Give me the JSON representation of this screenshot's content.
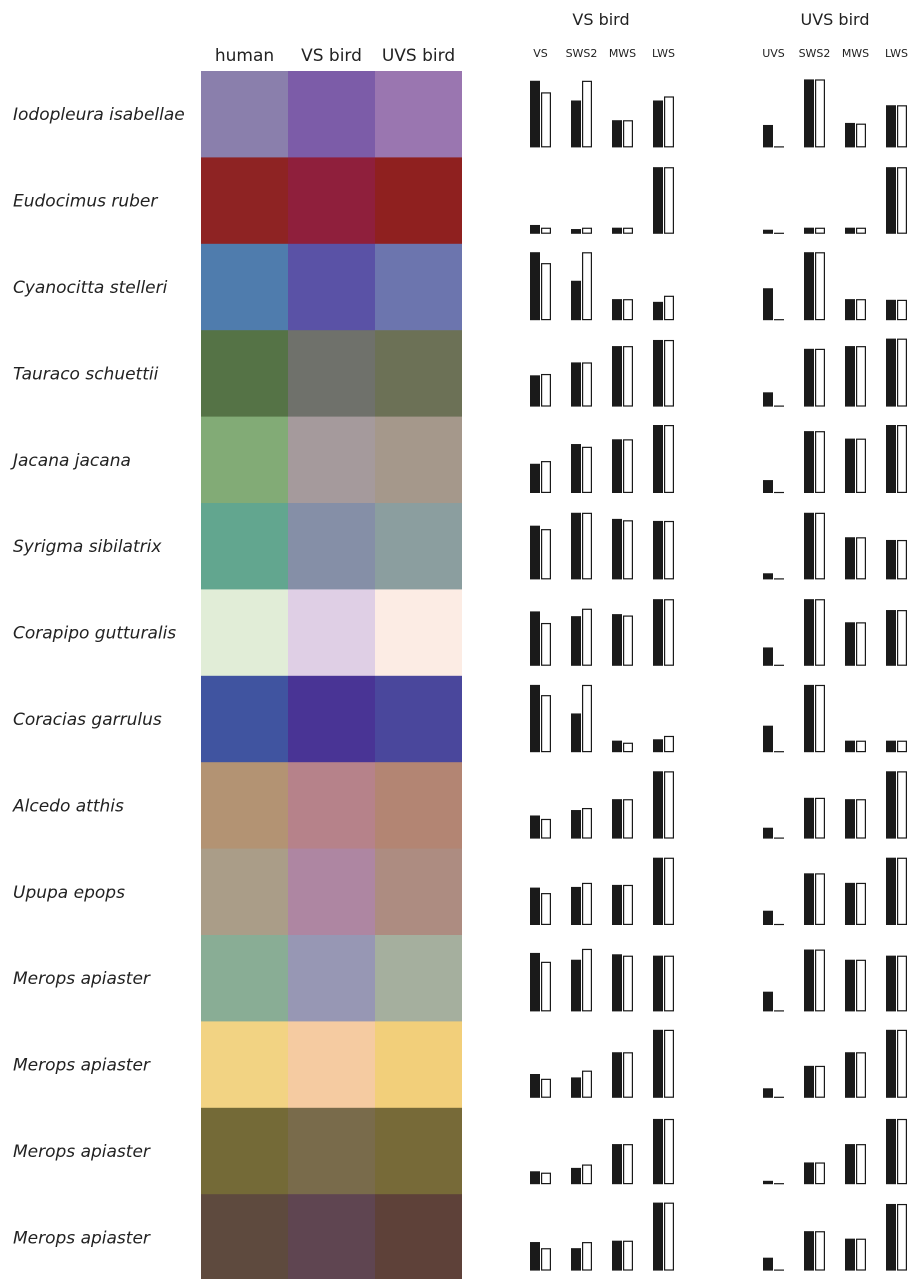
{
  "chart_data": {
    "type": "bar",
    "headers": {
      "swatch_columns": [
        "human",
        "VS bird",
        "UVS bird"
      ],
      "panels": [
        {
          "title": "VS bird",
          "cones": [
            "VS",
            "SWS2",
            "MWS",
            "LWS"
          ]
        },
        {
          "title": "UVS bird",
          "cones": [
            "UVS",
            "SWS2",
            "MWS",
            "LWS"
          ]
        }
      ]
    },
    "legend": "filled bar = first value, open bar = second value (per cone)",
    "y_range": [
      0,
      1
    ],
    "rows": [
      {
        "species": "Iodopleura isabellae",
        "colors": [
          "#8a7fac",
          "#7c5ca8",
          "#9a76b0"
        ],
        "vs": [
          [
            0.98,
            0.81
          ],
          [
            0.69,
            0.98
          ],
          [
            0.4,
            0.4
          ],
          [
            0.69,
            0.75
          ]
        ],
        "uvs": [
          [
            0.33,
            0.0
          ],
          [
            1.0,
            1.0
          ],
          [
            0.36,
            0.35
          ],
          [
            0.62,
            0.62
          ]
        ]
      },
      {
        "species": "Eudocimus ruber",
        "colors": [
          "#8e2323",
          "#8f1f3c",
          "#8f201f"
        ],
        "vs": [
          [
            0.13,
            0.09
          ],
          [
            0.07,
            0.09
          ],
          [
            0.09,
            0.09
          ],
          [
            0.98,
            0.98
          ]
        ],
        "uvs": [
          [
            0.06,
            0.0
          ],
          [
            0.09,
            0.09
          ],
          [
            0.09,
            0.09
          ],
          [
            0.98,
            0.98
          ]
        ]
      },
      {
        "species": "Cyanocitta stelleri",
        "colors": [
          "#4f7cad",
          "#5a52a6",
          "#6c75ae"
        ],
        "vs": [
          [
            1.0,
            0.84
          ],
          [
            0.58,
            1.0
          ],
          [
            0.31,
            0.31
          ],
          [
            0.27,
            0.36
          ]
        ],
        "uvs": [
          [
            0.47,
            0.0
          ],
          [
            1.0,
            1.0
          ],
          [
            0.31,
            0.31
          ],
          [
            0.3,
            0.3
          ]
        ]
      },
      {
        "species": "Tauraco schuettii",
        "colors": [
          "#557346",
          "#6f716b",
          "#6c7156"
        ],
        "vs": [
          [
            0.46,
            0.48
          ],
          [
            0.65,
            0.65
          ],
          [
            0.89,
            0.89
          ],
          [
            0.98,
            0.98
          ]
        ],
        "uvs": [
          [
            0.21,
            0.0
          ],
          [
            0.85,
            0.85
          ],
          [
            0.89,
            0.89
          ],
          [
            1.0,
            1.0
          ]
        ]
      },
      {
        "species": "Jacana jacana",
        "colors": [
          "#82ab76",
          "#a59a9c",
          "#a5988b"
        ],
        "vs": [
          [
            0.43,
            0.47
          ],
          [
            0.72,
            0.68
          ],
          [
            0.79,
            0.79
          ],
          [
            1.0,
            1.0
          ]
        ],
        "uvs": [
          [
            0.19,
            0.0
          ],
          [
            0.91,
            0.91
          ],
          [
            0.8,
            0.8
          ],
          [
            1.0,
            1.0
          ]
        ]
      },
      {
        "species": "Syrigma sibilatrix",
        "colors": [
          "#62a68f",
          "#858fa7",
          "#8b9e9f"
        ],
        "vs": [
          [
            0.79,
            0.74
          ],
          [
            0.98,
            0.98
          ],
          [
            0.89,
            0.87
          ],
          [
            0.86,
            0.86
          ]
        ],
        "uvs": [
          [
            0.09,
            0.0
          ],
          [
            0.98,
            0.98
          ],
          [
            0.62,
            0.62
          ],
          [
            0.58,
            0.58
          ]
        ]
      },
      {
        "species": "Corapipo gutturalis",
        "colors": [
          "#e1edd7",
          "#dfcfe5",
          "#fcece4"
        ],
        "vs": [
          [
            0.8,
            0.63
          ],
          [
            0.73,
            0.84
          ],
          [
            0.76,
            0.74
          ],
          [
            0.98,
            0.98
          ]
        ],
        "uvs": [
          [
            0.27,
            0.0
          ],
          [
            0.98,
            0.98
          ],
          [
            0.64,
            0.64
          ],
          [
            0.82,
            0.82
          ]
        ]
      },
      {
        "species": "Coracias garrulus",
        "colors": [
          "#4054a0",
          "#493495",
          "#4a479c"
        ],
        "vs": [
          [
            0.99,
            0.84
          ],
          [
            0.57,
            0.99
          ],
          [
            0.17,
            0.14
          ],
          [
            0.19,
            0.24
          ]
        ],
        "uvs": [
          [
            0.39,
            0.0
          ],
          [
            0.99,
            0.99
          ],
          [
            0.17,
            0.17
          ],
          [
            0.17,
            0.17
          ]
        ]
      },
      {
        "species": "Alcedo atthis",
        "colors": [
          "#b39373",
          "#b6828a",
          "#b38573"
        ],
        "vs": [
          [
            0.34,
            0.29
          ],
          [
            0.42,
            0.45
          ],
          [
            0.58,
            0.58
          ],
          [
            0.99,
            0.99
          ]
        ],
        "uvs": [
          [
            0.16,
            0.0
          ],
          [
            0.6,
            0.6
          ],
          [
            0.58,
            0.58
          ],
          [
            0.99,
            0.99
          ]
        ]
      },
      {
        "species": "Upupa epops",
        "colors": [
          "#aa9d88",
          "#ae86a2",
          "#ad8c81"
        ],
        "vs": [
          [
            0.55,
            0.47
          ],
          [
            0.56,
            0.62
          ],
          [
            0.59,
            0.59
          ],
          [
            0.99,
            0.99
          ]
        ],
        "uvs": [
          [
            0.21,
            0.0
          ],
          [
            0.76,
            0.76
          ],
          [
            0.62,
            0.62
          ],
          [
            0.99,
            0.99
          ]
        ]
      },
      {
        "species": "Merops apiaster",
        "colors": [
          "#89ad95",
          "#9797b4",
          "#a5af9e"
        ],
        "vs": [
          [
            0.86,
            0.73
          ],
          [
            0.76,
            0.92
          ],
          [
            0.84,
            0.82
          ],
          [
            0.82,
            0.82
          ]
        ],
        "uvs": [
          [
            0.29,
            0.0
          ],
          [
            0.91,
            0.91
          ],
          [
            0.76,
            0.76
          ],
          [
            0.82,
            0.82
          ]
        ]
      },
      {
        "species": "Merops apiaster",
        "colors": [
          "#f2d383",
          "#f5cba1",
          "#f2cf7a"
        ],
        "vs": [
          [
            0.35,
            0.28
          ],
          [
            0.3,
            0.4
          ],
          [
            0.67,
            0.67
          ],
          [
            1.0,
            1.0
          ]
        ],
        "uvs": [
          [
            0.14,
            0.0
          ],
          [
            0.47,
            0.47
          ],
          [
            0.67,
            0.67
          ],
          [
            1.0,
            1.0
          ]
        ]
      },
      {
        "species": "Merops apiaster",
        "colors": [
          "#746a37",
          "#796b4b",
          "#776a38"
        ],
        "vs": [
          [
            0.19,
            0.17
          ],
          [
            0.24,
            0.29
          ],
          [
            0.59,
            0.59
          ],
          [
            0.96,
            0.96
          ]
        ],
        "uvs": [
          [
            0.05,
            0.0
          ],
          [
            0.32,
            0.32
          ],
          [
            0.59,
            0.59
          ],
          [
            0.96,
            0.96
          ]
        ]
      },
      {
        "species": "Merops apiaster",
        "colors": [
          "#5e4a3e",
          "#5f4551",
          "#5e4139"
        ],
        "vs": [
          [
            0.42,
            0.33
          ],
          [
            0.33,
            0.42
          ],
          [
            0.44,
            0.44
          ],
          [
            1.0,
            1.0
          ]
        ],
        "uvs": [
          [
            0.19,
            0.0
          ],
          [
            0.58,
            0.58
          ],
          [
            0.47,
            0.47
          ],
          [
            0.98,
            0.98
          ]
        ]
      }
    ]
  }
}
